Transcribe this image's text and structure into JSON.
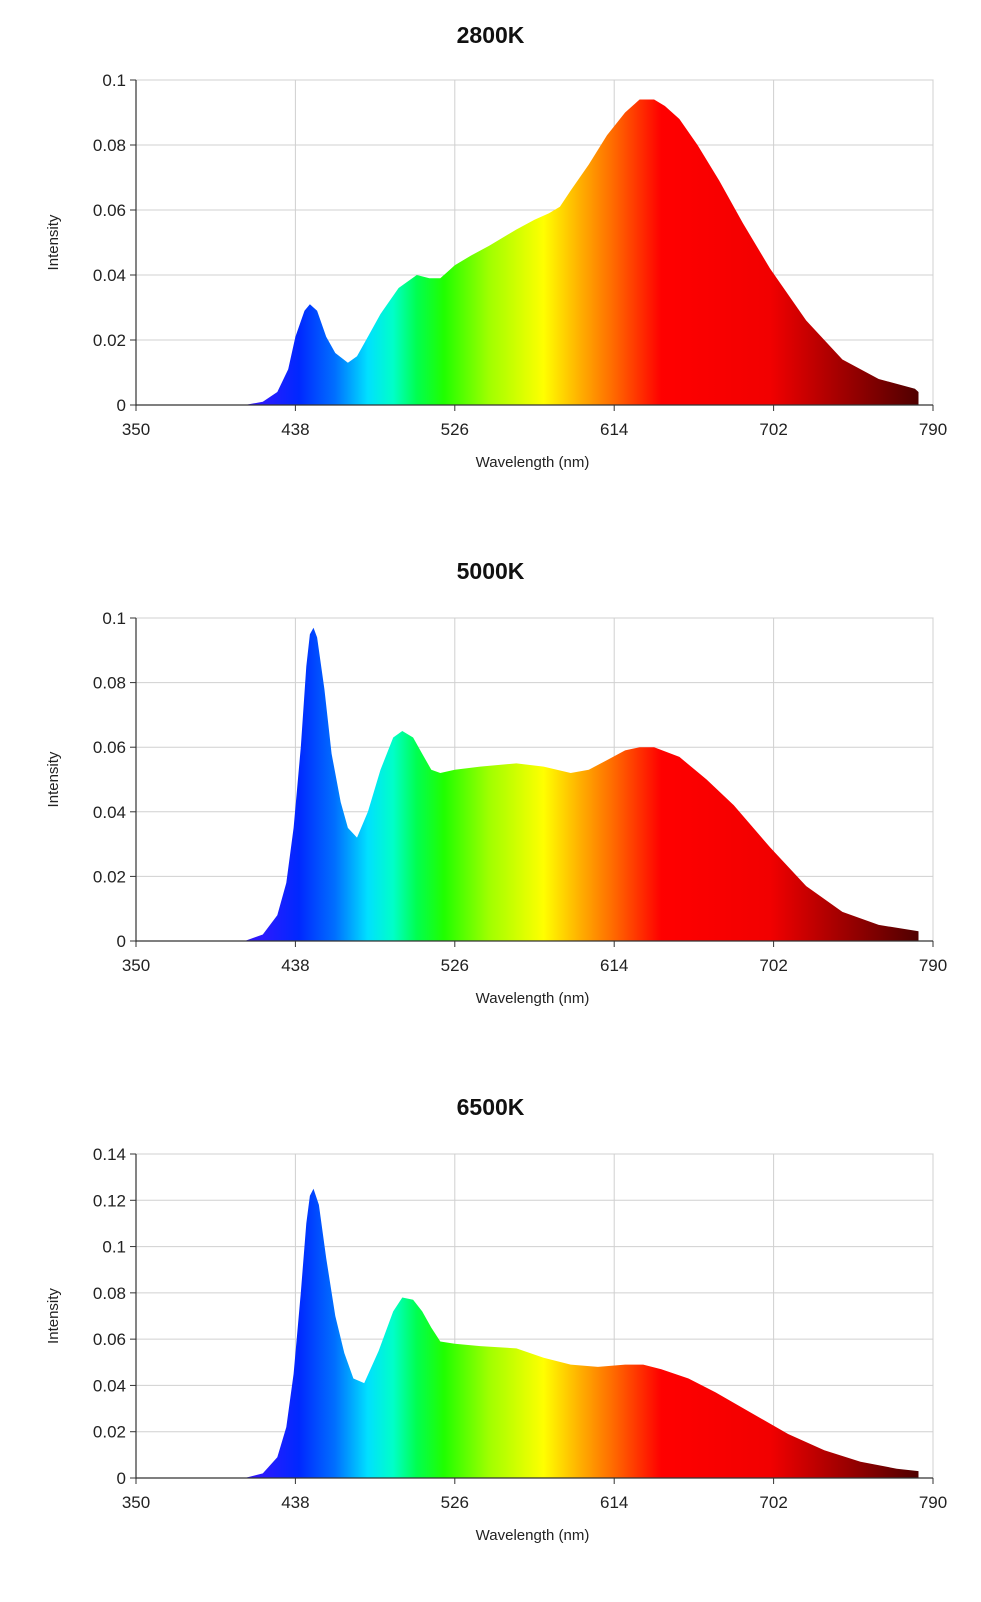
{
  "chart_data": [
    {
      "type": "area",
      "title": "2800K",
      "xlabel": "Wavelength (nm)",
      "ylabel": "Intensity",
      "xlim": [
        350,
        790
      ],
      "ylim": [
        0,
        0.1
      ],
      "xticks": [
        "350",
        "438",
        "526",
        "614",
        "702",
        "790"
      ],
      "yticks": [
        "0",
        "0.02",
        "0.04",
        "0.06",
        "0.08",
        "0.1"
      ],
      "grid": true,
      "fill": "visible spectrum gradient",
      "x": [
        380,
        410,
        420,
        428,
        434,
        438,
        443,
        446,
        450,
        455,
        460,
        467,
        472,
        478,
        485,
        495,
        505,
        512,
        518,
        522,
        526,
        535,
        545,
        560,
        570,
        578,
        584,
        590,
        600,
        610,
        620,
        628,
        636,
        642,
        650,
        660,
        672,
        685,
        700,
        720,
        740,
        760,
        780,
        782
      ],
      "y": [
        0,
        0,
        0.001,
        0.004,
        0.011,
        0.021,
        0.029,
        0.031,
        0.029,
        0.021,
        0.016,
        0.013,
        0.015,
        0.021,
        0.028,
        0.036,
        0.04,
        0.039,
        0.039,
        0.041,
        0.043,
        0.046,
        0.049,
        0.054,
        0.057,
        0.059,
        0.061,
        0.066,
        0.074,
        0.083,
        0.09,
        0.094,
        0.094,
        0.092,
        0.088,
        0.08,
        0.069,
        0.056,
        0.042,
        0.026,
        0.014,
        0.008,
        0.005,
        0.004
      ]
    },
    {
      "type": "area",
      "title": "5000K",
      "xlabel": "Wavelength (nm)",
      "ylabel": "Intensity",
      "xlim": [
        350,
        790
      ],
      "ylim": [
        0,
        0.1
      ],
      "xticks": [
        "350",
        "438",
        "526",
        "614",
        "702",
        "790"
      ],
      "yticks": [
        "0",
        "0.02",
        "0.04",
        "0.06",
        "0.08",
        "0.1"
      ],
      "grid": true,
      "fill": "visible spectrum gradient",
      "x": [
        380,
        410,
        420,
        428,
        433,
        437,
        441,
        444,
        446,
        448,
        450,
        454,
        458,
        463,
        467,
        472,
        478,
        485,
        492,
        497,
        503,
        508,
        513,
        518,
        526,
        540,
        560,
        575,
        590,
        600,
        610,
        620,
        628,
        636,
        650,
        665,
        680,
        700,
        720,
        740,
        760,
        782
      ],
      "y": [
        0,
        0,
        0.002,
        0.008,
        0.018,
        0.035,
        0.06,
        0.085,
        0.095,
        0.097,
        0.094,
        0.078,
        0.058,
        0.043,
        0.035,
        0.032,
        0.04,
        0.053,
        0.063,
        0.065,
        0.063,
        0.058,
        0.053,
        0.052,
        0.053,
        0.054,
        0.055,
        0.054,
        0.052,
        0.053,
        0.056,
        0.059,
        0.06,
        0.06,
        0.057,
        0.05,
        0.042,
        0.029,
        0.017,
        0.009,
        0.005,
        0.003
      ]
    },
    {
      "type": "area",
      "title": "6500K",
      "xlabel": "Wavelength (nm)",
      "ylabel": "Intensity",
      "xlim": [
        350,
        790
      ],
      "ylim": [
        0,
        0.14
      ],
      "xticks": [
        "350",
        "438",
        "526",
        "614",
        "702",
        "790"
      ],
      "yticks": [
        "0",
        "0.02",
        "0.04",
        "0.06",
        "0.08",
        "0.1",
        "0.12",
        "0.14"
      ],
      "grid": true,
      "fill": "visible spectrum gradient",
      "x": [
        380,
        410,
        420,
        428,
        433,
        437,
        441,
        444,
        446,
        448,
        451,
        455,
        460,
        465,
        470,
        476,
        484,
        492,
        497,
        503,
        508,
        513,
        518,
        526,
        540,
        560,
        575,
        590,
        605,
        620,
        630,
        640,
        655,
        670,
        690,
        710,
        730,
        750,
        770,
        782
      ],
      "y": [
        0,
        0,
        0.002,
        0.009,
        0.022,
        0.045,
        0.08,
        0.11,
        0.122,
        0.125,
        0.118,
        0.095,
        0.07,
        0.054,
        0.043,
        0.041,
        0.055,
        0.072,
        0.078,
        0.077,
        0.072,
        0.065,
        0.059,
        0.058,
        0.057,
        0.056,
        0.052,
        0.049,
        0.048,
        0.049,
        0.049,
        0.047,
        0.043,
        0.037,
        0.028,
        0.019,
        0.012,
        0.007,
        0.004,
        0.003
      ]
    }
  ]
}
